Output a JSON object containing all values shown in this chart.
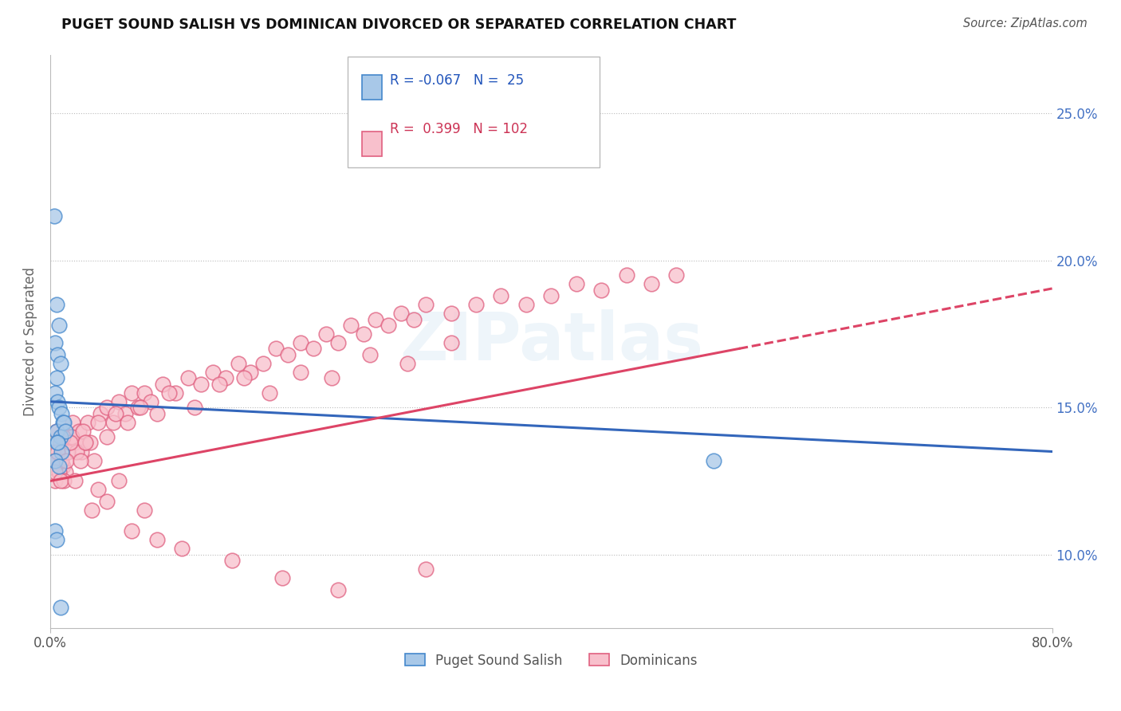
{
  "title": "PUGET SOUND SALISH VS DOMINICAN DIVORCED OR SEPARATED CORRELATION CHART",
  "source": "Source: ZipAtlas.com",
  "ylabel": "Divorced or Separated",
  "yticks": [
    10.0,
    15.0,
    20.0,
    25.0
  ],
  "ytick_labels": [
    "10.0%",
    "15.0%",
    "20.0%",
    "25.0%"
  ],
  "xmin": 0.0,
  "xmax": 80.0,
  "ymin": 7.5,
  "ymax": 27.0,
  "legend_blue_r": "-0.067",
  "legend_blue_n": "25",
  "legend_pink_r": "0.399",
  "legend_pink_n": "102",
  "legend1_label": "Puget Sound Salish",
  "legend2_label": "Dominicans",
  "blue_fill": "#a8c8e8",
  "pink_fill": "#f8c0cc",
  "blue_edge": "#4488cc",
  "pink_edge": "#e06080",
  "blue_line": "#3366bb",
  "pink_line": "#dd4466",
  "blue_line_y0": 15.2,
  "blue_line_y1": 13.5,
  "pink_line_y0": 12.5,
  "pink_line_y1": 18.0,
  "pink_solid_end_x": 55.0,
  "pink_solid_end_y": 17.0,
  "pink_dash_end_y": 18.0,
  "blue_x": [
    0.3,
    0.5,
    0.7,
    0.4,
    0.6,
    0.8,
    0.5,
    0.4,
    0.6,
    0.7,
    0.9,
    1.0,
    0.5,
    0.8,
    1.1,
    0.6,
    0.9,
    0.4,
    0.7,
    1.2,
    0.4,
    0.5,
    53.0,
    0.8,
    0.6
  ],
  "blue_y": [
    21.5,
    18.5,
    17.8,
    17.2,
    16.8,
    16.5,
    16.0,
    15.5,
    15.2,
    15.0,
    14.8,
    14.5,
    14.2,
    14.0,
    14.5,
    13.8,
    13.5,
    13.2,
    13.0,
    14.2,
    10.8,
    10.5,
    13.2,
    8.2,
    13.8
  ],
  "pink_x": [
    0.3,
    0.5,
    0.6,
    0.8,
    1.0,
    1.2,
    1.5,
    1.8,
    2.0,
    2.3,
    2.5,
    2.8,
    3.0,
    3.5,
    4.0,
    4.5,
    5.0,
    5.5,
    6.0,
    6.5,
    7.0,
    7.5,
    8.0,
    9.0,
    10.0,
    11.0,
    12.0,
    13.0,
    14.0,
    15.0,
    16.0,
    17.0,
    18.0,
    19.0,
    20.0,
    21.0,
    22.0,
    23.0,
    24.0,
    25.0,
    26.0,
    27.0,
    28.0,
    29.0,
    30.0,
    32.0,
    34.0,
    36.0,
    38.0,
    40.0,
    42.0,
    44.0,
    46.0,
    48.0,
    50.0,
    0.4,
    0.7,
    0.9,
    1.1,
    1.4,
    1.7,
    2.1,
    2.6,
    3.2,
    3.8,
    4.5,
    5.2,
    6.2,
    7.2,
    8.5,
    9.5,
    11.5,
    13.5,
    15.5,
    17.5,
    20.0,
    22.5,
    25.5,
    28.5,
    32.0,
    0.2,
    0.4,
    0.6,
    0.8,
    1.0,
    1.3,
    1.6,
    2.0,
    2.4,
    2.8,
    3.3,
    3.8,
    4.5,
    5.5,
    6.5,
    7.5,
    8.5,
    10.5,
    14.5,
    18.5,
    23.0,
    30.0
  ],
  "pink_y": [
    13.5,
    14.2,
    13.2,
    13.8,
    13.0,
    12.8,
    14.0,
    14.5,
    13.8,
    14.2,
    13.5,
    13.8,
    14.5,
    13.2,
    14.8,
    15.0,
    14.5,
    15.2,
    14.8,
    15.5,
    15.0,
    15.5,
    15.2,
    15.8,
    15.5,
    16.0,
    15.8,
    16.2,
    16.0,
    16.5,
    16.2,
    16.5,
    17.0,
    16.8,
    17.2,
    17.0,
    17.5,
    17.2,
    17.8,
    17.5,
    18.0,
    17.8,
    18.2,
    18.0,
    18.5,
    18.2,
    18.5,
    18.8,
    18.5,
    18.8,
    19.2,
    19.0,
    19.5,
    19.2,
    19.5,
    12.5,
    12.8,
    13.2,
    12.5,
    13.5,
    14.0,
    13.5,
    14.2,
    13.8,
    14.5,
    14.0,
    14.8,
    14.5,
    15.0,
    14.8,
    15.5,
    15.0,
    15.8,
    16.0,
    15.5,
    16.2,
    16.0,
    16.8,
    16.5,
    17.2,
    13.2,
    12.8,
    13.5,
    12.5,
    14.0,
    13.2,
    13.8,
    12.5,
    13.2,
    13.8,
    11.5,
    12.2,
    11.8,
    12.5,
    10.8,
    11.5,
    10.5,
    10.2,
    9.8,
    9.2,
    8.8,
    9.5
  ]
}
